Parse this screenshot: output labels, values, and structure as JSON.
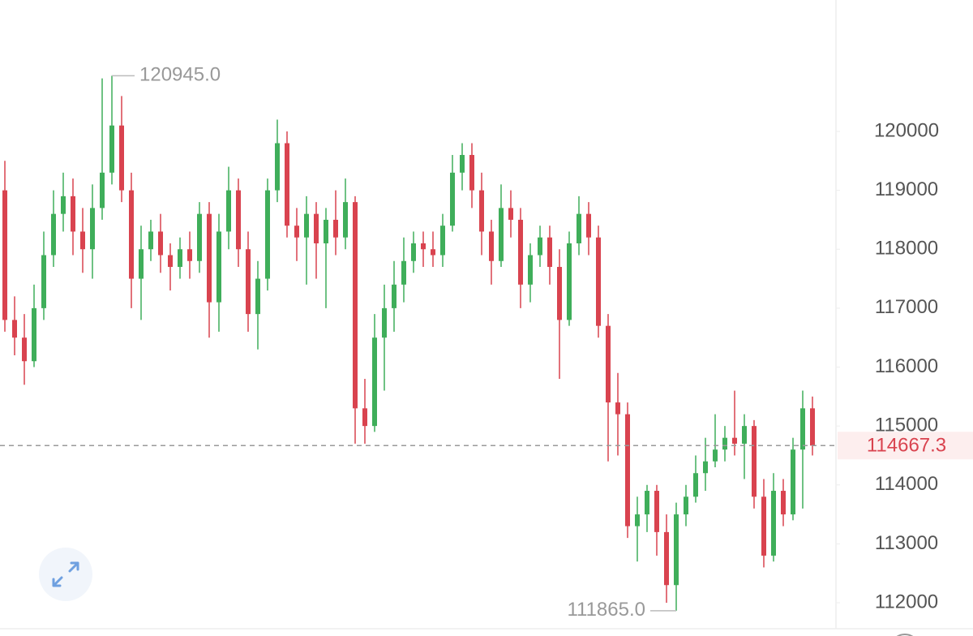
{
  "chart_data": {
    "type": "candlestick",
    "up_color": "#3fae5a",
    "down_color": "#d9434f",
    "ylim": [
      111560,
      122230
    ],
    "yticks": [
      112000,
      113000,
      114000,
      115000,
      116000,
      117000,
      118000,
      119000,
      120000
    ],
    "high_label": {
      "value": 120945,
      "label": "120945.0"
    },
    "low_label": {
      "value": 111865,
      "label": "111865.0"
    },
    "last_price": 114667.3,
    "open": [
      119000,
      116800,
      116500,
      116100,
      117000,
      117900,
      118600,
      118900,
      118300,
      118000,
      118700,
      119300,
      120100,
      119000,
      117500,
      118000,
      118300,
      117900,
      117700,
      118000,
      117800,
      118600,
      117100,
      118300,
      119000,
      118000,
      116900,
      117500,
      119000,
      119800,
      118400,
      118200,
      118600,
      118100,
      118500,
      118200,
      118800,
      115300,
      115000,
      116500,
      117000,
      117400,
      117800,
      118100,
      118000,
      117900,
      118400,
      119300,
      119600,
      119000,
      118300,
      117800,
      118700,
      118500,
      117400,
      117900,
      118200,
      117700,
      116800,
      118100,
      118600,
      118200,
      116700,
      115400,
      115200,
      113300,
      113500,
      113900,
      113200,
      112300,
      113500,
      113800,
      114200,
      114400,
      114600,
      114800,
      114700,
      115000,
      113800,
      112800,
      113900,
      113500,
      114600,
      115300
    ],
    "high": [
      119500,
      117200,
      116900,
      117400,
      118300,
      119000,
      119300,
      119200,
      118700,
      119100,
      120900,
      120945,
      120600,
      119300,
      118400,
      118500,
      118600,
      118100,
      118200,
      118300,
      118800,
      118800,
      118600,
      119400,
      119200,
      118300,
      117800,
      119200,
      120200,
      120000,
      118700,
      118900,
      118800,
      118700,
      119000,
      119200,
      118900,
      115800,
      116900,
      117400,
      117800,
      118200,
      118300,
      118300,
      118300,
      118600,
      119600,
      119800,
      119800,
      119300,
      118500,
      119100,
      119000,
      118700,
      118100,
      118400,
      118400,
      118000,
      118300,
      118900,
      118800,
      118400,
      116900,
      115900,
      115400,
      113800,
      114000,
      114000,
      113500,
      113700,
      114000,
      114500,
      114800,
      115200,
      115000,
      115600,
      115200,
      115100,
      114100,
      114200,
      114100,
      114800,
      115600,
      115500
    ],
    "low": [
      116600,
      116200,
      115700,
      116000,
      116800,
      117700,
      118300,
      117900,
      117600,
      117500,
      118500,
      119100,
      118800,
      117000,
      116800,
      117800,
      117600,
      117300,
      117500,
      117500,
      117600,
      116500,
      116600,
      118000,
      117700,
      116600,
      116300,
      117300,
      118800,
      118200,
      117800,
      117400,
      117500,
      117000,
      117900,
      118000,
      114700,
      114700,
      114900,
      115600,
      116600,
      117100,
      117600,
      117700,
      117700,
      117700,
      118300,
      119000,
      118700,
      117900,
      117400,
      117700,
      118200,
      117000,
      117100,
      117700,
      117400,
      115800,
      116700,
      117900,
      117900,
      116500,
      114400,
      114500,
      113100,
      112700,
      113200,
      112800,
      112000,
      111865,
      113300,
      113700,
      113900,
      114300,
      114400,
      114500,
      114100,
      113600,
      112600,
      112700,
      113300,
      113400,
      113600,
      114500
    ],
    "close": [
      116800,
      116500,
      116100,
      117000,
      117900,
      118600,
      118900,
      118300,
      118000,
      118700,
      119300,
      120100,
      119000,
      117500,
      118000,
      118300,
      117900,
      117700,
      118000,
      117800,
      118600,
      117100,
      118300,
      119000,
      118000,
      116900,
      117500,
      119000,
      119800,
      118400,
      118200,
      118600,
      118100,
      118500,
      118200,
      118800,
      115300,
      115000,
      116500,
      117000,
      117400,
      117800,
      118100,
      118000,
      117900,
      118400,
      119300,
      119600,
      119000,
      118300,
      117800,
      118700,
      118500,
      117400,
      117900,
      118200,
      117700,
      116800,
      118100,
      118600,
      118200,
      116700,
      115400,
      115200,
      113300,
      113500,
      113900,
      113200,
      112300,
      113500,
      113800,
      114200,
      114400,
      114600,
      114800,
      114700,
      115000,
      113800,
      112800,
      113900,
      113500,
      114600,
      115300,
      114667.3
    ]
  }
}
